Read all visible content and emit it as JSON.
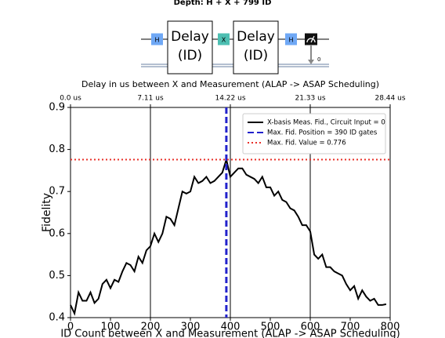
{
  "circuit": {
    "title": "Depth: H + X + 799 ID",
    "gates": [
      {
        "lines": [
          "H"
        ],
        "color": "#6fa8f5"
      },
      {
        "lines": [
          "Delay",
          "(ID)"
        ],
        "color": "#ffffff"
      },
      {
        "lines": [
          "X"
        ],
        "color": "#4dbfb2"
      },
      {
        "lines": [
          "Delay",
          "(ID)"
        ],
        "color": "#ffffff"
      },
      {
        "lines": [
          "H"
        ],
        "color": "#6fa8f5"
      },
      {
        "lines": [],
        "color": "#111111"
      }
    ],
    "classical_bit": "0"
  },
  "chart_data": {
    "type": "line",
    "top_axis_label": "Delay in us between X and Measurement (ALAP -> ASAP Scheduling)",
    "xlabel": "ID Count between X and Measurement (ALAP -> ASAP Scheduling)",
    "ylabel": "Fidelity",
    "x": [
      0,
      10,
      20,
      30,
      40,
      50,
      60,
      70,
      80,
      90,
      100,
      110,
      120,
      130,
      140,
      150,
      160,
      170,
      180,
      190,
      200,
      210,
      220,
      230,
      240,
      250,
      260,
      270,
      280,
      290,
      300,
      310,
      320,
      330,
      340,
      350,
      360,
      370,
      380,
      390,
      400,
      410,
      420,
      430,
      440,
      450,
      460,
      470,
      480,
      490,
      500,
      510,
      520,
      530,
      540,
      550,
      560,
      570,
      580,
      590,
      600,
      610,
      620,
      630,
      640,
      650,
      660,
      670,
      680,
      690,
      700,
      710,
      720,
      730,
      740,
      750,
      760,
      770,
      780,
      790
    ],
    "series": [
      {
        "name": "X-basis Meas. Fid., Circuit Input = 0",
        "color": "#000000",
        "values": [
          0.43,
          0.41,
          0.46,
          0.44,
          0.44,
          0.46,
          0.435,
          0.445,
          0.48,
          0.49,
          0.47,
          0.49,
          0.485,
          0.51,
          0.53,
          0.525,
          0.51,
          0.545,
          0.53,
          0.56,
          0.57,
          0.6,
          0.58,
          0.6,
          0.64,
          0.635,
          0.62,
          0.66,
          0.7,
          0.695,
          0.7,
          0.735,
          0.72,
          0.725,
          0.735,
          0.72,
          0.725,
          0.735,
          0.745,
          0.776,
          0.735,
          0.745,
          0.755,
          0.755,
          0.74,
          0.735,
          0.73,
          0.72,
          0.735,
          0.71,
          0.71,
          0.69,
          0.7,
          0.68,
          0.675,
          0.66,
          0.655,
          0.64,
          0.62,
          0.62,
          0.605,
          0.55,
          0.54,
          0.55,
          0.52,
          0.52,
          0.51,
          0.505,
          0.5,
          0.48,
          0.465,
          0.475,
          0.445,
          0.465,
          0.45,
          0.44,
          0.445,
          0.43,
          0.43,
          0.432
        ]
      }
    ],
    "reference_lines": [
      {
        "name": "Max. Fid. Position = 390 ID gates",
        "axis": "x",
        "value": 390,
        "color": "#2222cc",
        "dash": "8,4"
      },
      {
        "name": "Max. Fid. Value = 0.776",
        "axis": "y",
        "value": 0.776,
        "color": "#e8302a",
        "dash": "2,3"
      }
    ],
    "vlines": [
      200,
      400,
      600
    ],
    "xlim": [
      0,
      800
    ],
    "xticks": [
      0,
      100,
      200,
      300,
      400,
      500,
      600,
      700,
      800
    ],
    "ylim": [
      0.4,
      0.9
    ],
    "yticks": [
      0.4,
      0.5,
      0.6,
      0.7,
      0.8,
      0.9
    ],
    "x2lim": [
      0,
      28.44
    ],
    "x2ticks": [
      {
        "value": 0,
        "label": "0.0 us"
      },
      {
        "value": 7.11,
        "label": "7.11 us"
      },
      {
        "value": 14.22,
        "label": "14.22 us"
      },
      {
        "value": 21.33,
        "label": "21.33 us"
      },
      {
        "value": 28.44,
        "label": "28.44 us"
      }
    ],
    "legend": "upper right"
  }
}
